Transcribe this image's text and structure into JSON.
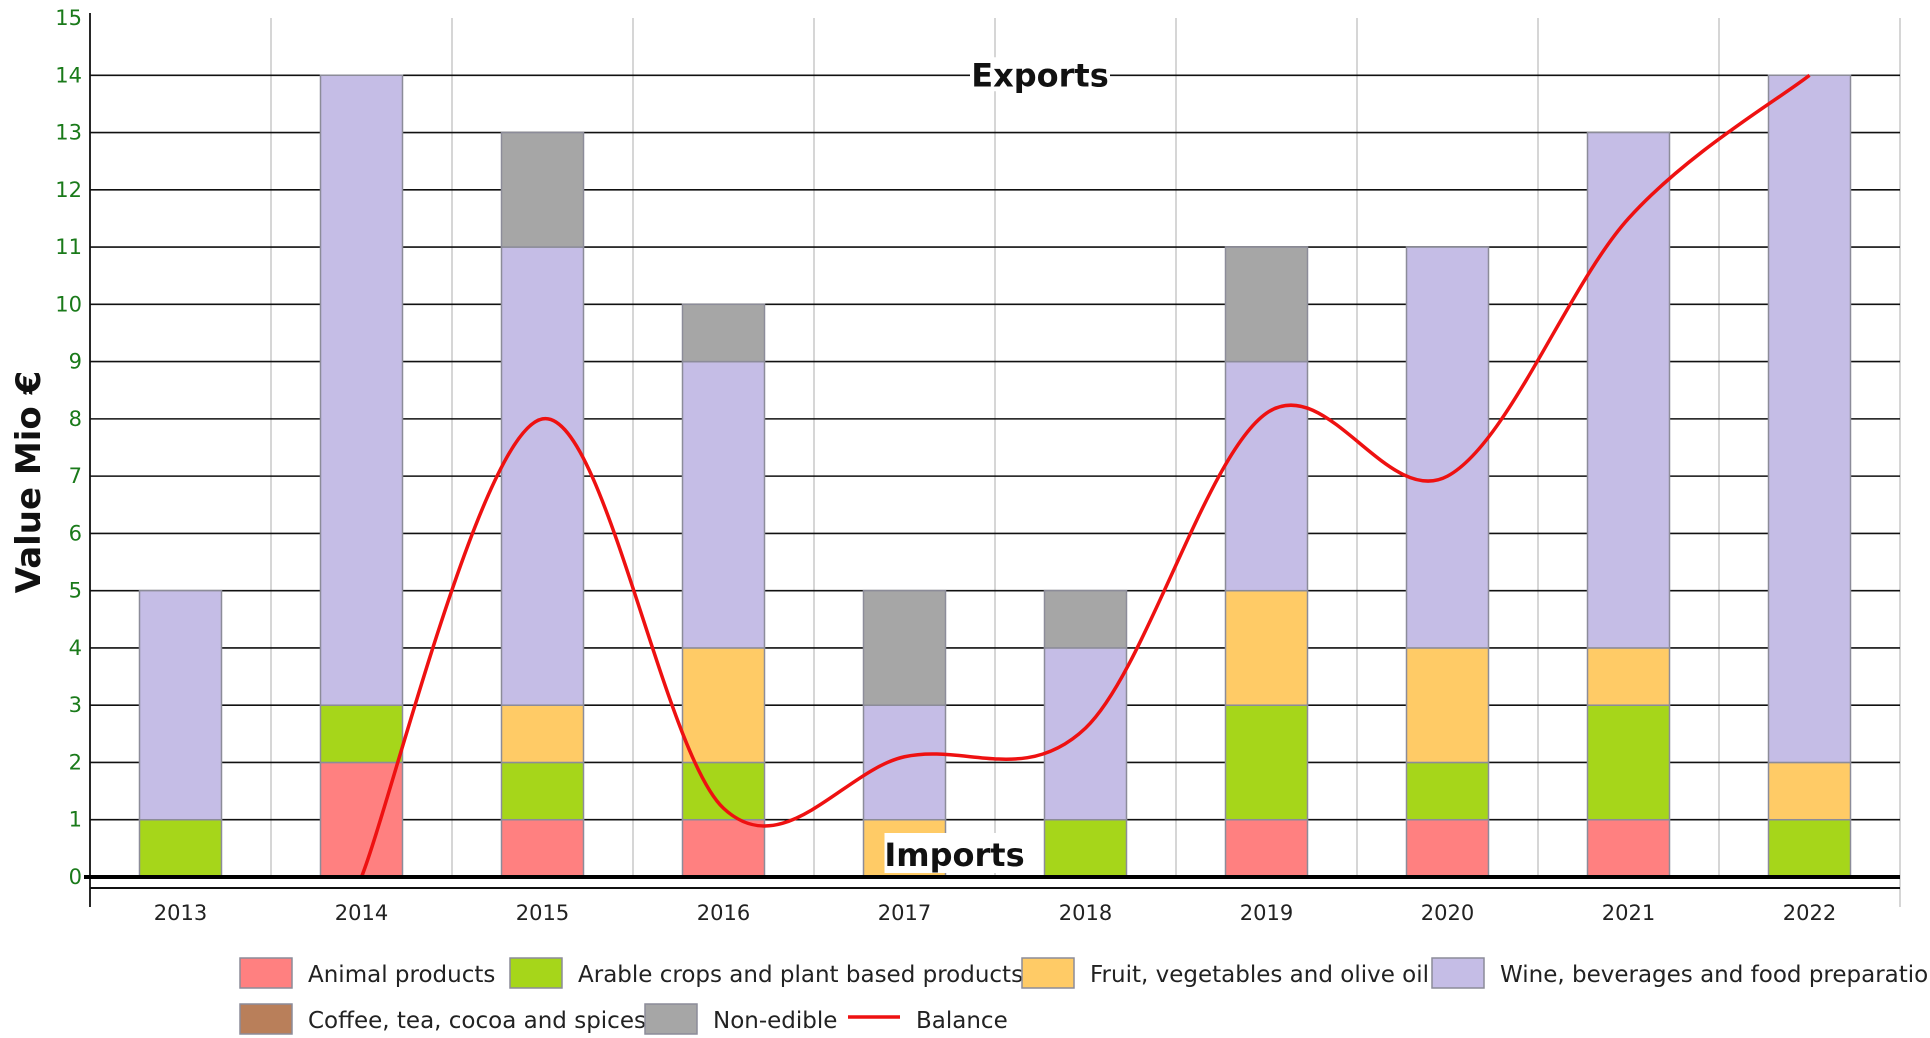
{
  "chart_data": {
    "type": "bar",
    "stacked": true,
    "ylabel": "Value Mio €",
    "xlabel": "",
    "ylim": [
      0,
      15
    ],
    "yticks": [
      0,
      1,
      2,
      3,
      4,
      5,
      6,
      7,
      8,
      9,
      10,
      11,
      12,
      13,
      14,
      15
    ],
    "categories": [
      "2013",
      "2014",
      "2015",
      "2016",
      "2017",
      "2018",
      "2019",
      "2020",
      "2021",
      "2022"
    ],
    "annotations": {
      "exports": "Exports",
      "imports": "Imports"
    },
    "series": [
      {
        "name": "Animal products",
        "color": "#ff8080",
        "values": [
          0,
          2,
          1,
          1,
          0,
          0,
          1,
          1,
          1,
          0
        ]
      },
      {
        "name": "Arable crops and plant based products",
        "color": "#a6d61a",
        "values": [
          1,
          1,
          1,
          1,
          0,
          1,
          2,
          1,
          2,
          1
        ]
      },
      {
        "name": "Fruit, vegetables and olive oil",
        "color": "#ffcb66",
        "values": [
          0,
          0,
          1,
          2,
          1,
          0,
          2,
          2,
          1,
          1
        ]
      },
      {
        "name": "Wine, beverages and food preparations",
        "color": "#c5bde6",
        "values": [
          4,
          11,
          8,
          5,
          2,
          3,
          4,
          7,
          9,
          12
        ]
      },
      {
        "name": "Coffee, tea, cocoa and spices",
        "color": "#b97f5a",
        "values": [
          0,
          0,
          0,
          0,
          0,
          0,
          0,
          0,
          0,
          0
        ]
      },
      {
        "name": "Non-edible",
        "color": "#a6a6a6",
        "values": [
          0,
          0,
          2,
          1,
          2,
          1,
          2,
          0,
          0,
          0
        ]
      }
    ],
    "line": {
      "name": "Balance",
      "color": "#ee1111",
      "values": [
        null,
        0,
        8,
        1.2,
        2.1,
        2.6,
        8.1,
        7,
        11.5,
        14
      ]
    },
    "legend_position": "bottom"
  }
}
